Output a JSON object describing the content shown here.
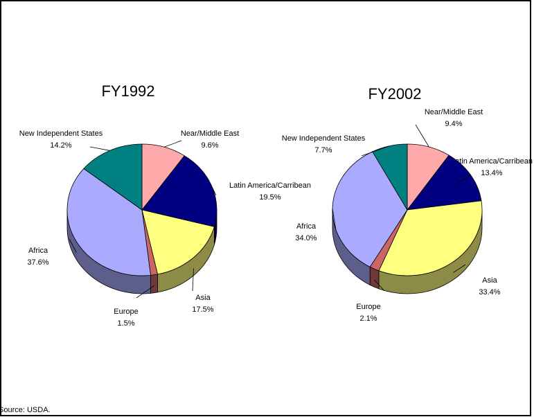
{
  "source": "Source: USDA.",
  "chart_data": [
    {
      "type": "pie",
      "title": "FY1992",
      "categories": [
        "Near/Middle East",
        "Latin America/Carribean",
        "Asia",
        "Europe",
        "Africa",
        "New Independent States"
      ],
      "values": [
        9.6,
        19.5,
        17.5,
        1.5,
        37.6,
        14.2
      ],
      "value_labels": [
        "9.6%",
        "19.5%",
        "17.5%",
        "1.5%",
        "37.6%",
        "14.2%"
      ],
      "colors": [
        "#ffaaaa",
        "#000080",
        "#ffff80",
        "#cc6666",
        "#aaaaff",
        "#008080"
      ]
    },
    {
      "type": "pie",
      "title": "FY2002",
      "categories": [
        "Near/Middle East",
        "Latin America/Carribean",
        "Asia",
        "Europe",
        "Africa",
        "New Independent States"
      ],
      "values": [
        9.4,
        13.4,
        33.4,
        2.1,
        34.0,
        7.7
      ],
      "value_labels": [
        "9.4%",
        "13.4%",
        "33.4%",
        "2.1%",
        "34.0%",
        "7.7%"
      ],
      "colors": [
        "#ffaaaa",
        "#000080",
        "#ffff80",
        "#cc6666",
        "#aaaaff",
        "#008080"
      ]
    }
  ]
}
